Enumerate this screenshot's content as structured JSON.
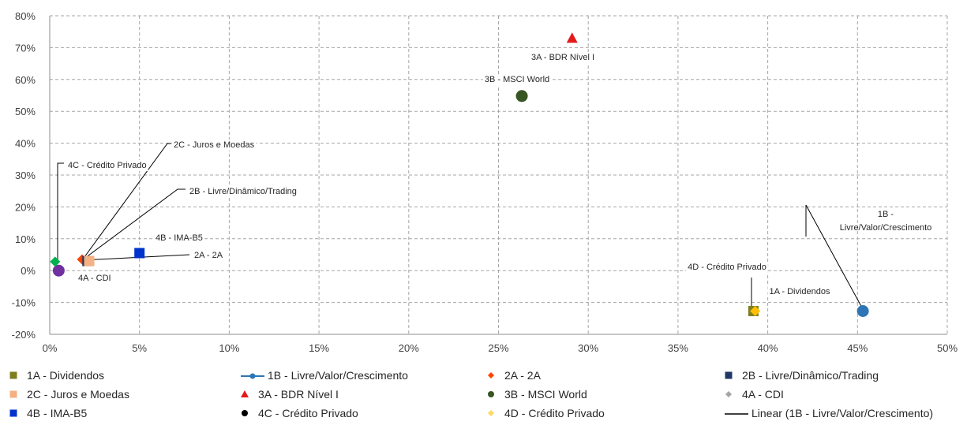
{
  "chart_data": {
    "type": "scatter",
    "xlim": [
      0,
      0.5
    ],
    "ylim": [
      -0.2,
      0.8
    ],
    "x_ticks": [
      "0%",
      "5%",
      "10%",
      "15%",
      "20%",
      "25%",
      "30%",
      "35%",
      "40%",
      "45%",
      "50%"
    ],
    "y_ticks": [
      "80%",
      "70%",
      "60%",
      "50%",
      "40%",
      "30%",
      "20%",
      "10%",
      "0%",
      "-10%",
      "-20%"
    ],
    "grid": true,
    "legend_position": "bottom",
    "series": [
      {
        "name": "1A - Dividendos",
        "label": "1A - Dividendos",
        "x": 0.392,
        "y": -0.127,
        "color": "#7f7f1f",
        "marker": "square"
      },
      {
        "name": "1B - Livre/Valor/Crescimento",
        "label": "1B - Livre/Valor/Crescimento",
        "x": 0.453,
        "y": -0.127,
        "color": "#2e75b6",
        "marker": "circle"
      },
      {
        "name": "2A - 2A",
        "label": "2A - 2A",
        "x": 0.018,
        "y": 0.035,
        "color": "#ff4500",
        "marker": "diamond"
      },
      {
        "name": "2B - Livre/Dinâmico/Trading",
        "label": "2B - Livre/Dinâmico/Trading",
        "x": 0.021,
        "y": 0.03,
        "color": "#1f3864",
        "marker": "square"
      },
      {
        "name": "2C - Juros e Moedas",
        "label": "2C - Juros e Moedas",
        "x": 0.022,
        "y": 0.03,
        "color": "#f4b183",
        "marker": "square"
      },
      {
        "name": "3A - BDR Nível I",
        "label": "3A - BDR Nível I",
        "x": 0.291,
        "y": 0.73,
        "color": "#e31a1c",
        "marker": "triangle"
      },
      {
        "name": "3B - MSCI World",
        "label": "3B - MSCI World",
        "x": 0.263,
        "y": 0.548,
        "color": "#375623",
        "marker": "circle"
      },
      {
        "name": "4A - CDI",
        "label": "4A - CDI",
        "x": 0.005,
        "y": 0.0,
        "color": "#7030a0",
        "marker": "circle"
      },
      {
        "name": "4B - IMA-B5",
        "label": "4B - IMA-B5",
        "x": 0.05,
        "y": 0.055,
        "color": "#0033cc",
        "marker": "square"
      },
      {
        "name": "4C - Crédito Privado",
        "label": "4C - Crédito Privado",
        "x": 0.003,
        "y": 0.028,
        "color": "#00b050",
        "marker": "diamond"
      },
      {
        "name": "4D - Crédito Privado",
        "label": "4D - Crédito Privado",
        "x": 0.393,
        "y": -0.127,
        "color": "#ffc000",
        "marker": "diamond"
      }
    ],
    "trendline": {
      "name": "Linear (1B - Livre/Valor/Crescimento)"
    },
    "legend": [
      {
        "label": "1A - Dividendos",
        "marker": "square",
        "color": "#7f7f1f"
      },
      {
        "label": "1B - Livre/Valor/Crescimento",
        "marker": "line-circle",
        "color": "#2e75b6"
      },
      {
        "label": "2A - 2A",
        "marker": "diamond",
        "color": "#ff4500"
      },
      {
        "label": "2B - Livre/Dinâmico/Trading",
        "marker": "square",
        "color": "#1f3864"
      },
      {
        "label": "2C - Juros e Moedas",
        "marker": "square",
        "color": "#f4b183"
      },
      {
        "label": "3A - BDR Nível I",
        "marker": "triangle",
        "color": "#e31a1c"
      },
      {
        "label": "3B - MSCI World",
        "marker": "circle",
        "color": "#375623"
      },
      {
        "label": "4A - CDI",
        "marker": "diamond",
        "color": "#a5a5a5"
      },
      {
        "label": "4B - IMA-B5",
        "marker": "square",
        "color": "#0033cc"
      },
      {
        "label": "4C - Crédito Privado",
        "marker": "circle",
        "color": "#000000"
      },
      {
        "label": "4D - Crédito Privado",
        "marker": "diamond",
        "color": "#ffd966"
      },
      {
        "label": "Linear (1B - Livre/Valor/Crescimento)",
        "marker": "line",
        "color": "#000000"
      }
    ]
  }
}
